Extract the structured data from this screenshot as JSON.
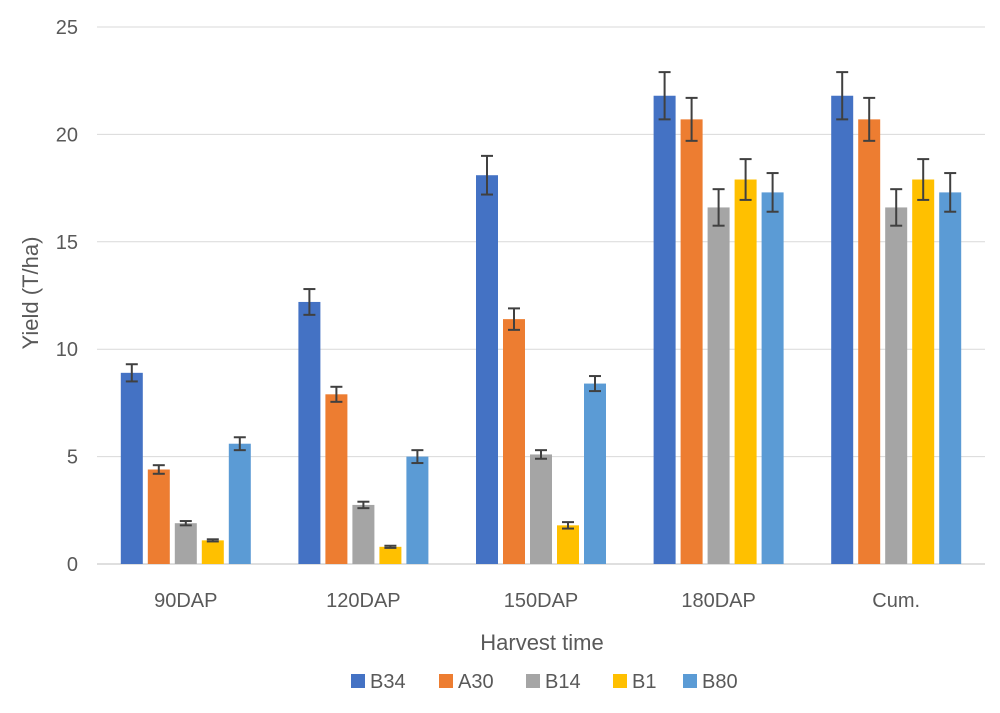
{
  "chart_data": {
    "type": "bar",
    "title": "",
    "xlabel": "Harvest time",
    "ylabel": "Yield (T/ha)",
    "ylim": [
      0,
      25
    ],
    "yticks": [
      0,
      5,
      10,
      15,
      20,
      25
    ],
    "grid": true,
    "legend_position": "bottom",
    "categories": [
      "90DAP",
      "120DAP",
      "150DAP",
      "180DAP",
      "Cum."
    ],
    "series": [
      {
        "name": "B34",
        "color": "#4472C4",
        "values": [
          8.9,
          12.2,
          18.1,
          21.8,
          21.8
        ],
        "errors": [
          0.4,
          0.6,
          0.9,
          1.1,
          1.1
        ]
      },
      {
        "name": "A30",
        "color": "#ED7D31",
        "values": [
          4.4,
          7.9,
          11.4,
          20.7,
          20.7
        ],
        "errors": [
          0.2,
          0.35,
          0.5,
          1.0,
          1.0
        ]
      },
      {
        "name": "B14",
        "color": "#A5A5A5",
        "values": [
          1.9,
          2.75,
          5.1,
          16.6,
          16.6
        ],
        "errors": [
          0.1,
          0.15,
          0.2,
          0.85,
          0.85
        ]
      },
      {
        "name": "B1",
        "color": "#FFC000",
        "values": [
          1.1,
          0.8,
          1.8,
          17.9,
          17.9
        ],
        "errors": [
          0.05,
          0.05,
          0.15,
          0.95,
          0.95
        ]
      },
      {
        "name": "B80",
        "color": "#5B9BD5",
        "values": [
          5.6,
          5.0,
          8.4,
          17.3,
          17.3
        ],
        "errors": [
          0.3,
          0.3,
          0.35,
          0.9,
          0.9
        ]
      }
    ]
  }
}
